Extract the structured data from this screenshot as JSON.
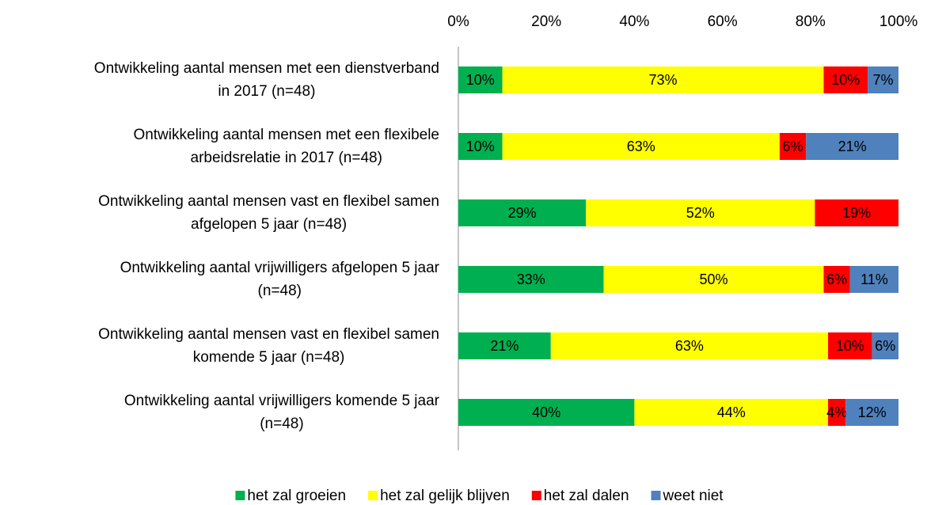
{
  "chart_data": {
    "type": "stacked-bar-horizontal",
    "categories": [
      [
        "Ontwikkeling aantal mensen met een dienstverband",
        "in 2017 (n=48)"
      ],
      [
        "Ontwikkeling aantal mensen met een flexibele",
        "arbeidsrelatie in 2017 (n=48)"
      ],
      [
        "Ontwikkeling aantal mensen vast en flexibel samen",
        "afgelopen 5 jaar (n=48)"
      ],
      [
        "Ontwikkeling aantal vrijwilligers afgelopen 5 jaar",
        "(n=48)"
      ],
      [
        "Ontwikkeling aantal mensen vast en flexibel samen",
        "komende 5 jaar (n=48)"
      ],
      [
        "Ontwikkeling aantal vrijwilligers komende 5 jaar",
        "(n=48)"
      ]
    ],
    "series": [
      {
        "name": "het zal groeien",
        "color": "#00b050",
        "values": [
          10,
          10,
          29,
          33,
          21,
          40
        ],
        "value_labels": [
          "10%",
          "10%",
          "29%",
          "33%",
          "21%",
          "40%"
        ]
      },
      {
        "name": "het zal gelijk blijven",
        "color": "#ffff00",
        "values": [
          73,
          63,
          52,
          50,
          63,
          44
        ],
        "value_labels": [
          "73%",
          "63%",
          "52%",
          "50%",
          "63%",
          "44%"
        ]
      },
      {
        "name": "het zal dalen",
        "color": "#ff0000",
        "values": [
          10,
          6,
          19,
          6,
          10,
          4
        ],
        "value_labels": [
          "10%",
          "6%",
          "19%",
          "6%",
          "10%",
          "4%"
        ]
      },
      {
        "name": "weet niet",
        "color": "#4f81bd",
        "values": [
          7,
          21,
          null,
          11,
          6,
          12
        ],
        "value_labels": [
          "7%",
          "21%",
          null,
          "11%",
          "6%",
          "12%"
        ]
      }
    ],
    "xlim": [
      0,
      100
    ],
    "xticks": [
      {
        "value": 0,
        "label": "0%"
      },
      {
        "value": 20,
        "label": "20%"
      },
      {
        "value": 40,
        "label": "40%"
      },
      {
        "value": 60,
        "label": "60%"
      },
      {
        "value": 80,
        "label": "80%"
      },
      {
        "value": 100,
        "label": "100%"
      }
    ],
    "grid": false,
    "legend": "bottom"
  }
}
